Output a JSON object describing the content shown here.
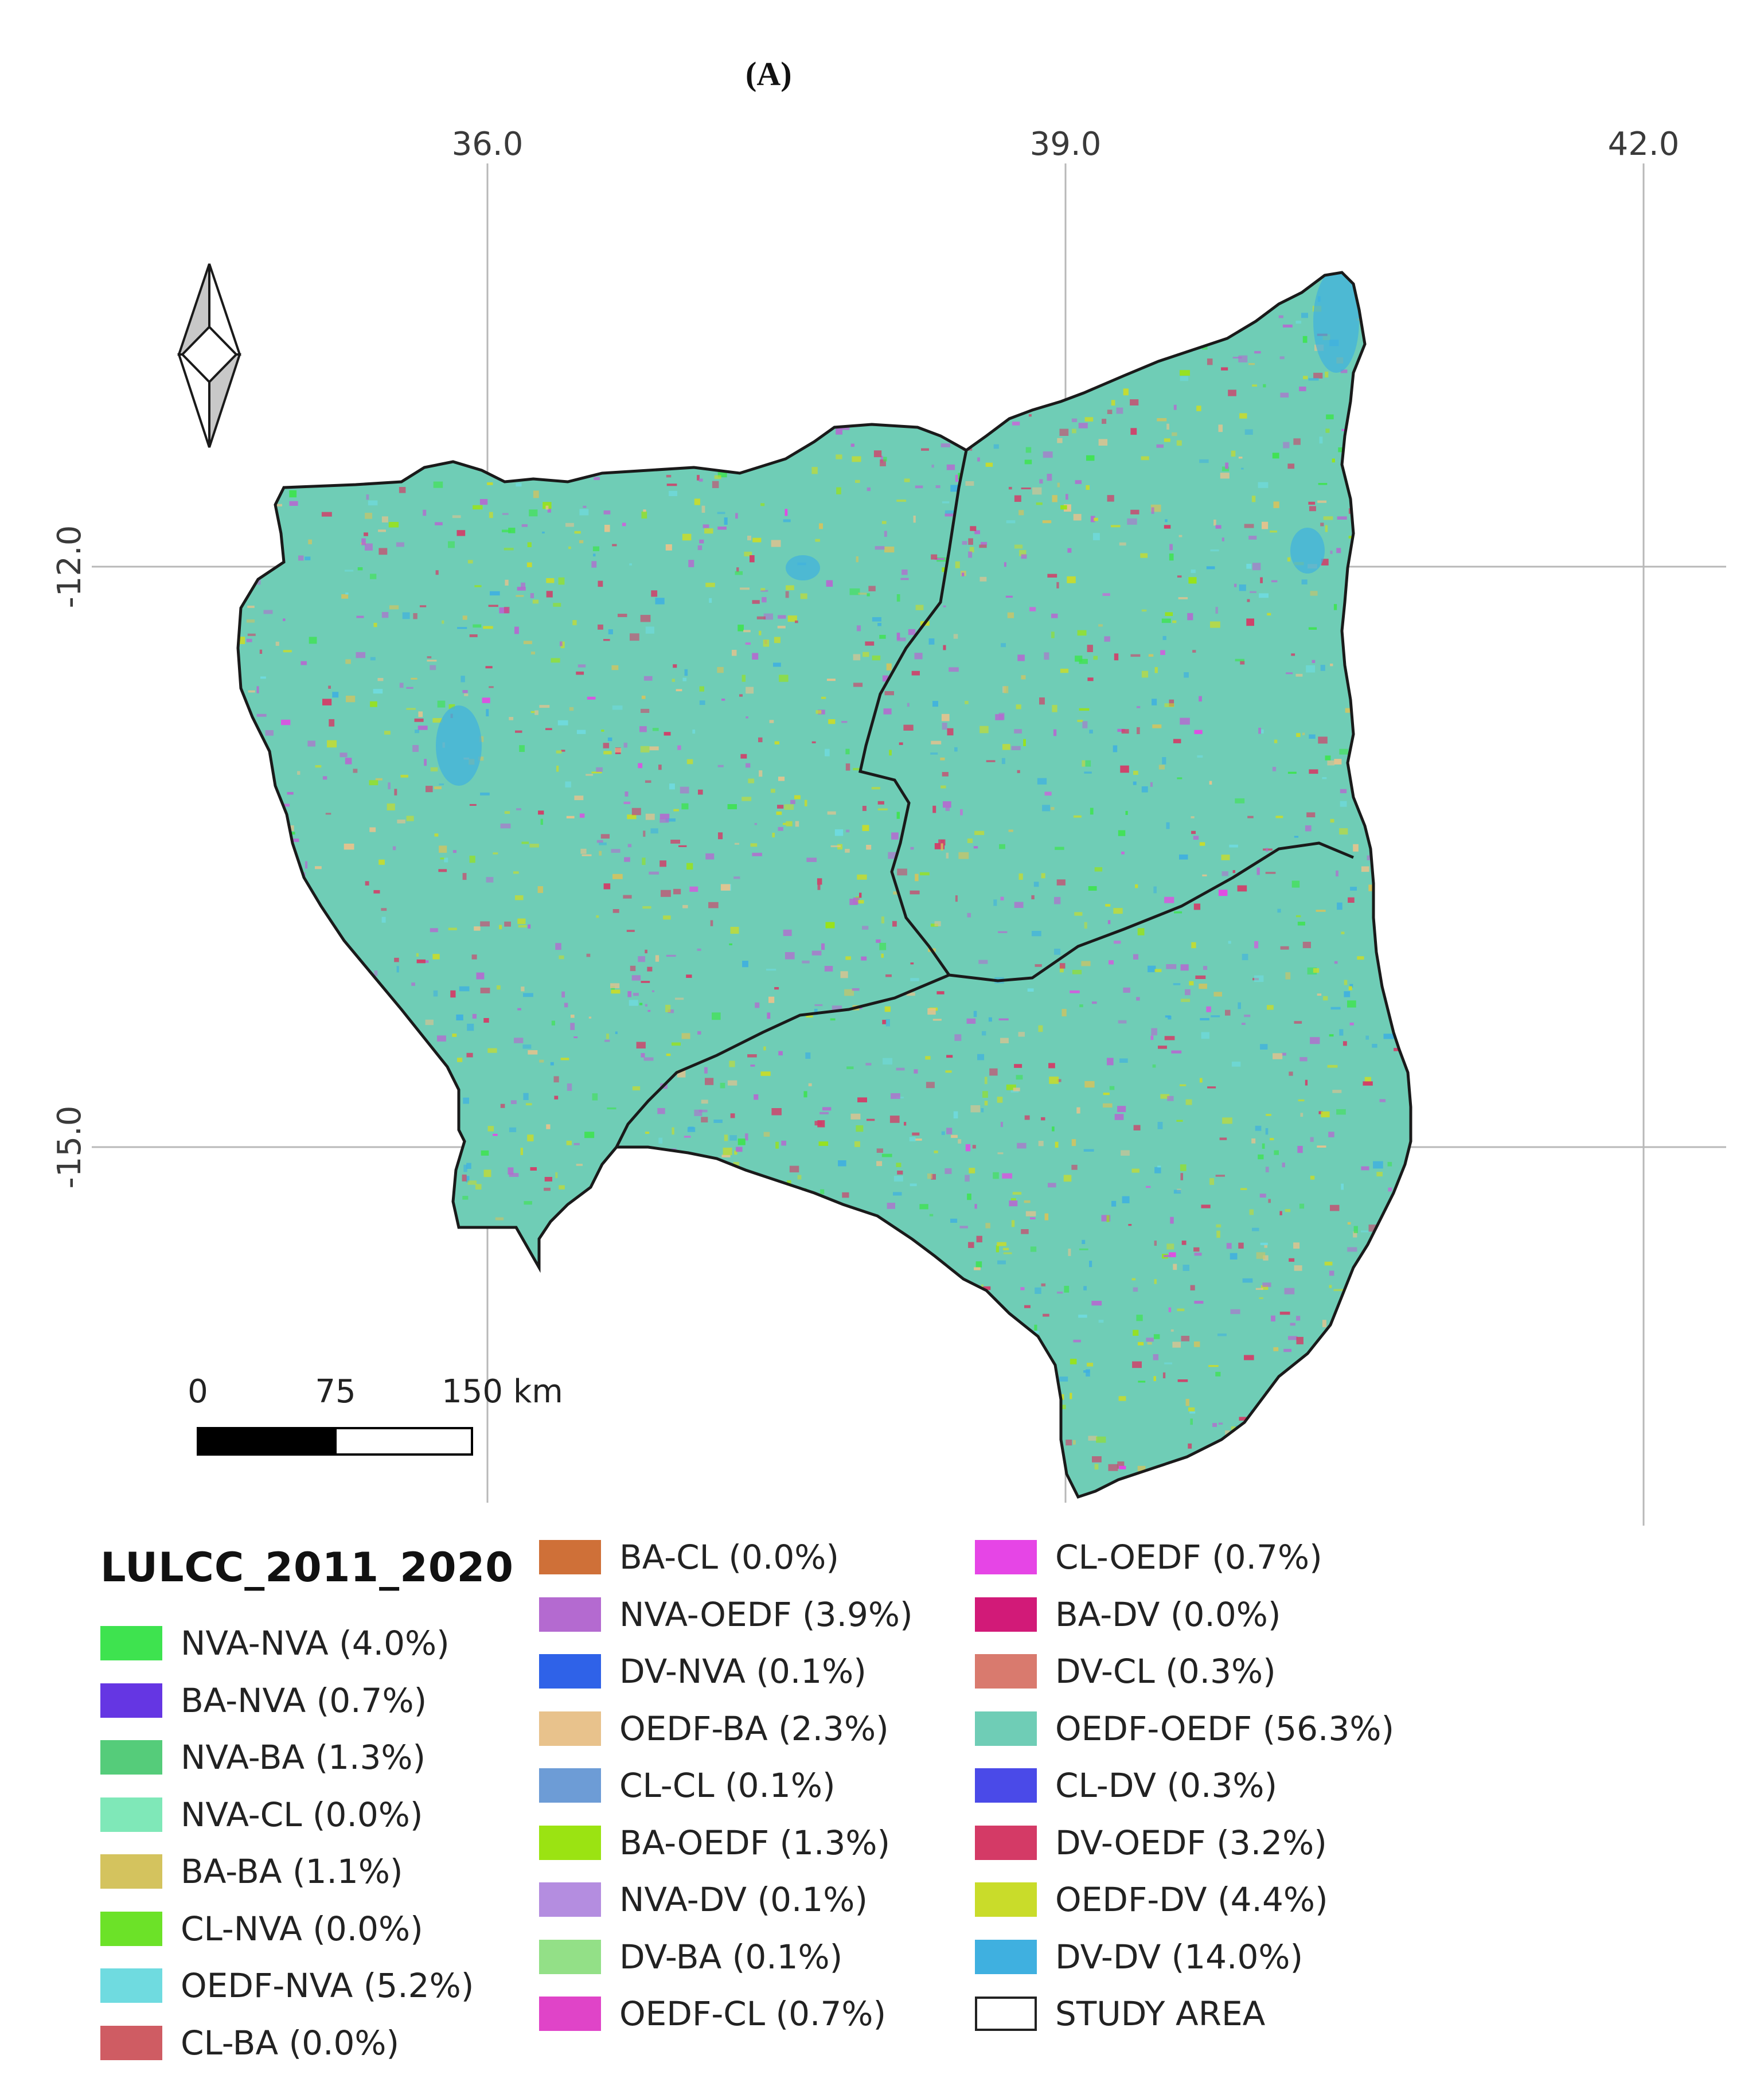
{
  "panel_label": "(A)",
  "axes": {
    "longitude_ticks": [
      "36.0",
      "39.0",
      "42.0"
    ],
    "latitude_ticks": [
      "-12.0",
      "-15.0"
    ]
  },
  "scale_bar": {
    "labels": [
      "0",
      "75",
      "150 km"
    ]
  },
  "north_arrow": {
    "icon": "north-arrow-icon"
  },
  "map": {
    "boundary_color": "#1a1a1a",
    "dominant_fill": "#6fcdb6",
    "provinces": 3
  },
  "legend": {
    "title": "LULCC_2011_2020",
    "columns": [
      [
        {
          "label": "NVA-NVA (4.0%)",
          "color": "#3ee34f"
        },
        {
          "label": "BA-NVA (0.7%)",
          "color": "#6536e3"
        },
        {
          "label": "NVA-BA (1.3%)",
          "color": "#55cc7a"
        },
        {
          "label": "NVA-CL (0.0%)",
          "color": "#7fe8b8"
        },
        {
          "label": "BA-BA (1.1%)",
          "color": "#d4c35e"
        },
        {
          "label": "CL-NVA (0.0%)",
          "color": "#6ce228"
        },
        {
          "label": "OEDF-NVA (5.2%)",
          "color": "#6fdbe0"
        },
        {
          "label": "CL-BA (0.0%)",
          "color": "#cf5c63"
        }
      ],
      [
        {
          "label": "BA-CL (0.0%)",
          "color": "#cf7038"
        },
        {
          "label": "NVA-OEDF (3.9%)",
          "color": "#b46ad0"
        },
        {
          "label": "DV-NVA (0.1%)",
          "color": "#2f62e8"
        },
        {
          "label": "OEDF-BA (2.3%)",
          "color": "#e8c28c"
        },
        {
          "label": "CL-CL (0.1%)",
          "color": "#6d9cd6"
        },
        {
          "label": "BA-OEDF (1.3%)",
          "color": "#9be312"
        },
        {
          "label": "NVA-DV (0.1%)",
          "color": "#b48de0"
        },
        {
          "label": "DV-BA (0.1%)",
          "color": "#93e087"
        },
        {
          "label": "OEDF-CL (0.7%)",
          "color": "#e044c8"
        }
      ],
      [
        {
          "label": "CL-OEDF (0.7%)",
          "color": "#e645e6"
        },
        {
          "label": "BA-DV (0.0%)",
          "color": "#d21a78"
        },
        {
          "label": "DV-CL (0.3%)",
          "color": "#d97a6e"
        },
        {
          "label": "OEDF-OEDF (56.3%)",
          "color": "#6fcdb6"
        },
        {
          "label": "CL-DV (0.3%)",
          "color": "#4a4ae8"
        },
        {
          "label": "DV-OEDF (3.2%)",
          "color": "#d43a66"
        },
        {
          "label": "OEDF-DV (4.4%)",
          "color": "#c9dc2a"
        },
        {
          "label": "DV-DV (14.0%)",
          "color": "#3fb0e0"
        },
        {
          "label": "STUDY AREA",
          "color": "#ffffff",
          "outline": true
        }
      ]
    ]
  }
}
